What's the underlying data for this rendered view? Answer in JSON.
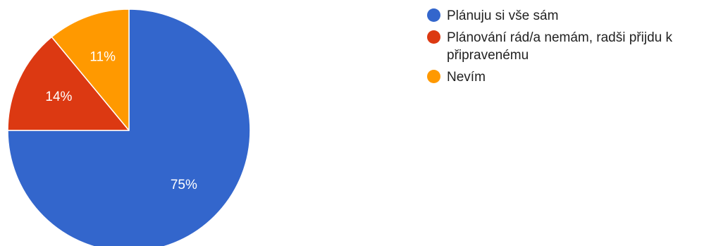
{
  "chart_data": {
    "type": "pie",
    "slices": [
      {
        "label": "Plánuju si vše sám",
        "value": 75,
        "display": "75%",
        "color": "#3366cc"
      },
      {
        "label": "Plánování rád/a nemám, radši přijdu k připravenému",
        "value": 14,
        "display": "14%",
        "color": "#dc3912"
      },
      {
        "label": "Nevím",
        "value": 11,
        "display": "11%",
        "color": "#ff9900"
      }
    ],
    "legend_position": "right",
    "start_direction": "clockwise from top"
  }
}
